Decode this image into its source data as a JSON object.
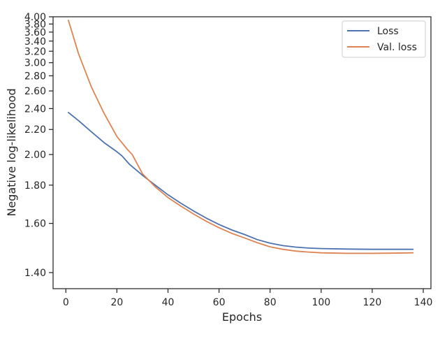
{
  "chart_data": {
    "type": "line",
    "xlabel": "Epochs",
    "ylabel": "Negative log-likelihood",
    "xlim": [
      -5,
      143
    ],
    "ylim": [
      1.345,
      4.0
    ],
    "yscale": "reciprocal",
    "x_ticks": [
      0,
      20,
      40,
      60,
      80,
      100,
      120,
      140
    ],
    "x_tick_labels": [
      "0",
      "20",
      "40",
      "60",
      "80",
      "100",
      "120",
      "140"
    ],
    "y_ticks": [
      1.4,
      1.6,
      1.8,
      2.0,
      2.2,
      2.4,
      2.6,
      2.8,
      3.0,
      3.2,
      3.4,
      3.6,
      3.8,
      4.0
    ],
    "y_tick_labels": [
      "1.40",
      "1.60",
      "1.80",
      "2.00",
      "2.20",
      "2.40",
      "2.60",
      "2.80",
      "3.00",
      "3.20",
      "3.40",
      "3.60",
      "3.80",
      "4.00"
    ],
    "grid": false,
    "legend_position": "top-right",
    "series": [
      {
        "name": "Loss",
        "color": "#4c72b0",
        "x": [
          1,
          5,
          10,
          15,
          20,
          22,
          25,
          30,
          35,
          40,
          45,
          50,
          55,
          60,
          65,
          70,
          75,
          80,
          85,
          90,
          95,
          100,
          110,
          120,
          130,
          136
        ],
        "y": [
          2.36,
          2.28,
          2.18,
          2.09,
          2.02,
          1.99,
          1.93,
          1.86,
          1.8,
          1.745,
          1.7,
          1.66,
          1.625,
          1.595,
          1.57,
          1.55,
          1.528,
          1.513,
          1.503,
          1.497,
          1.493,
          1.491,
          1.489,
          1.488,
          1.488,
          1.488
        ]
      },
      {
        "name": "Val. loss",
        "color": "#dd8452",
        "x": [
          1,
          5,
          10,
          15,
          20,
          24,
          26,
          30,
          35,
          40,
          45,
          50,
          55,
          60,
          65,
          70,
          75,
          80,
          85,
          90,
          95,
          100,
          110,
          120,
          130,
          136
        ],
        "y": [
          3.9,
          3.15,
          2.65,
          2.35,
          2.14,
          2.04,
          2.0,
          1.87,
          1.79,
          1.73,
          1.685,
          1.645,
          1.61,
          1.58,
          1.555,
          1.535,
          1.515,
          1.498,
          1.488,
          1.481,
          1.477,
          1.474,
          1.472,
          1.472,
          1.473,
          1.474
        ]
      }
    ]
  }
}
